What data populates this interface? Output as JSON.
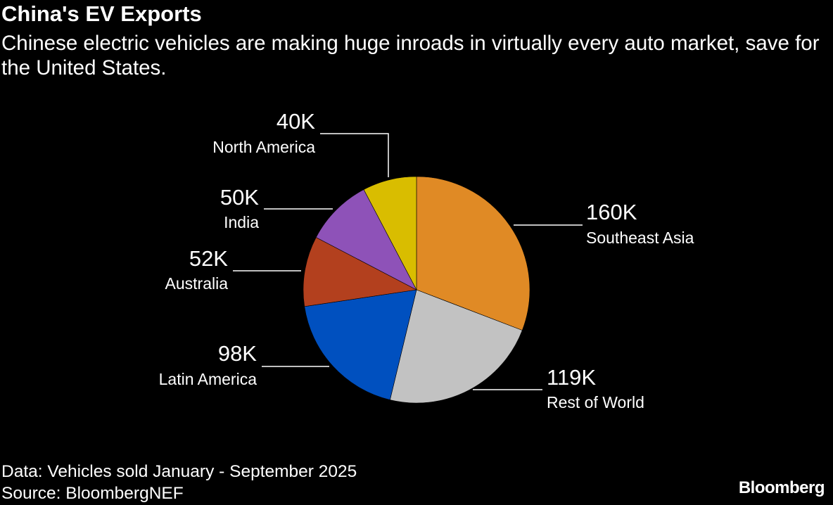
{
  "chart_data": {
    "type": "pie",
    "title": "China's EV Exports",
    "subtitle": "Chinese electric vehicles are making huge inroads in virtually every auto market, save for the United States.",
    "slices": [
      {
        "name": "Southeast Asia",
        "value": 160,
        "label": "160K",
        "color": "#e08a25"
      },
      {
        "name": "Rest of World",
        "value": 119,
        "label": "119K",
        "color": "#c2c2c2"
      },
      {
        "name": "Latin America",
        "value": 98,
        "label": "98K",
        "color": "#0050bf"
      },
      {
        "name": "Australia",
        "value": 52,
        "label": "52K",
        "color": "#b3401e"
      },
      {
        "name": "India",
        "value": 50,
        "label": "50K",
        "color": "#8e52b8"
      },
      {
        "name": "North America",
        "value": 40,
        "label": "40K",
        "color": "#d9bd00"
      }
    ],
    "start_angle": "12 o'clock",
    "direction": "clockwise"
  },
  "footer": {
    "note": "Data: Vehicles sold January - September 2025",
    "source": "Source: BloombergNEF",
    "logo": "Bloomberg"
  }
}
